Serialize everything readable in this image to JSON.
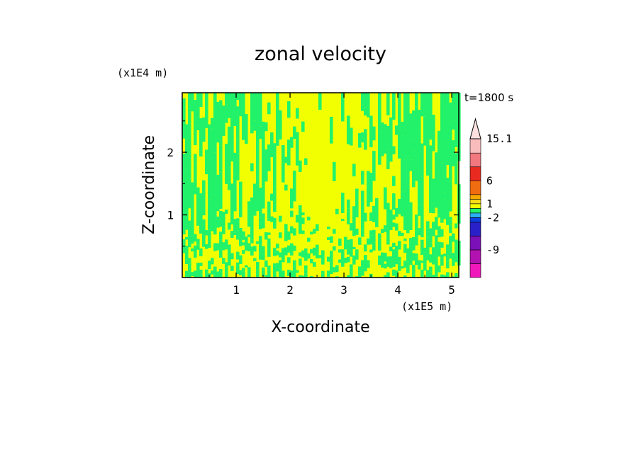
{
  "chart_data": {
    "type": "heatmap",
    "title": "zonal velocity",
    "xlabel": "X-coordinate",
    "ylabel": "Z-coordinate",
    "x_unit": "(x1E5 m)",
    "y_unit": "(x1E4 m)",
    "time_label": "t=1800 s",
    "xlim": [
      0,
      5.13
    ],
    "ylim": [
      0,
      2.95
    ],
    "x_ticks": [
      "1",
      "2",
      "3",
      "4",
      "5"
    ],
    "x_tick_values": [
      1,
      2,
      3,
      4,
      5
    ],
    "y_ticks": [
      "1",
      "2"
    ],
    "y_tick_values": [
      1,
      2
    ],
    "field_colors": {
      "positive_small": "#f2ff00",
      "negative_small": "#21f26a"
    },
    "colorbar": {
      "levels": [
        -15,
        -12,
        -9,
        -6,
        -3,
        -2,
        -1,
        0,
        1,
        2,
        3,
        6,
        9,
        12,
        15.1
      ],
      "colors": [
        "#f018ba",
        "#b212b0",
        "#7c10b8",
        "#2a20c8",
        "#0a40e0",
        "#2ab0f0",
        "#21f26a",
        "#f2ff00",
        "#f5dc18",
        "#f5a800",
        "#f06c10",
        "#e82a20",
        "#f0787e",
        "#f8bcbc",
        "#fde0e0"
      ],
      "labels": [
        "15.1",
        "6",
        "1",
        "-2",
        "-9"
      ],
      "label_values": [
        15.1,
        6,
        1,
        -2,
        -9
      ]
    }
  }
}
